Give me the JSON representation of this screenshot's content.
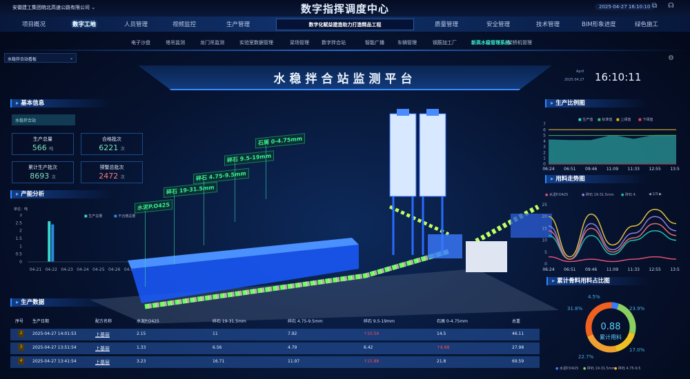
{
  "header": {
    "company": "安徽建工集团皖北高速公路有限公司",
    "title": "数字指挥调度中心",
    "datetime": "2025-04-27 16:10:10",
    "subtitle": "数字化赋益建造助力打造精品工程"
  },
  "nav": {
    "left": [
      "项目概况",
      "数字工地",
      "人员管理",
      "视频监控",
      "生产管理"
    ],
    "right": [
      "质量管理",
      "安全管理",
      "技术管理",
      "BIM形象进度",
      "绿色施工"
    ],
    "active": "数字工地"
  },
  "subnav": {
    "items": [
      "电子沙盘",
      "塔吊监测",
      "龙门吊监测",
      "实验室数据管理",
      "梁场管理",
      "数字拌合站",
      "智能广播",
      "车辆管理",
      "钢筋加工厂",
      "新高水稳管理系统",
      "架桥机管理"
    ],
    "active": "新高水稳管理系统"
  },
  "dropdown": {
    "value": "水稳拌合站看板"
  },
  "banner": {
    "title": "水稳拌合站监测平台",
    "month": "April",
    "date": "2025.04.27",
    "time": "16:10:11"
  },
  "basic": {
    "title": "基本信息",
    "station": "水稳拌合站",
    "cards": [
      {
        "label": "生产总量",
        "value": "566",
        "unit": "吨"
      },
      {
        "label": "合格批次",
        "value": "6221",
        "unit": "次"
      },
      {
        "label": "累计生产批次",
        "value": "8693",
        "unit": "次"
      },
      {
        "label": "预警总批次",
        "value": "2472",
        "unit": "次"
      }
    ]
  },
  "capacity": {
    "title": "产能分析",
    "unit": "单位：吨",
    "legend": [
      "生产总量",
      "不合格总量"
    ],
    "chart_data": {
      "type": "bar",
      "categories": [
        "04-21",
        "04-22",
        "04-23",
        "04-24",
        "04-25",
        "04-26",
        "04-27"
      ],
      "series": [
        {
          "name": "生产总量",
          "values": [
            0,
            2.6,
            0,
            0,
            0,
            0,
            0
          ]
        },
        {
          "name": "不合格总量",
          "values": [
            0,
            2.4,
            0,
            0,
            0,
            0,
            0
          ]
        }
      ],
      "ylim": [
        0,
        3
      ],
      "yticks": [
        "0",
        "0.5",
        "1",
        "1.5",
        "2",
        "2.5",
        "3"
      ]
    }
  },
  "scene": {
    "tags": [
      "水泥P.O425",
      "碎石 19-31.5mm",
      "碎石 4.75-9.5mm",
      "碎石 9.5-19mm",
      "石屑 0-4.75mm"
    ]
  },
  "ratio": {
    "title": "生产比例图",
    "legend": [
      "生产值",
      "标准值",
      "上阀值",
      "下阀值"
    ],
    "colors": [
      "#3ad6c8",
      "#3ac46a",
      "#e8b020",
      "#f0405a"
    ],
    "chart_data": {
      "type": "area",
      "x": [
        "06:24",
        "06:51",
        "09:46",
        "11:09",
        "11:33",
        "12:55",
        "13:51"
      ],
      "ylim": [
        0,
        7
      ],
      "yticks": [
        "0",
        "1",
        "2",
        "3",
        "4",
        "5",
        "6",
        "7"
      ],
      "values": [
        4.3,
        4.2,
        4.2,
        5.1,
        4.4,
        5.1,
        5.1
      ],
      "upper": 6,
      "standard": 5,
      "lower": 0
    }
  },
  "trend": {
    "title": "用料走势图",
    "legend": [
      "水泥P.O425",
      "碎石 19-31.5mm",
      "碎石 4."
    ],
    "pager": "1/3",
    "chart_data": {
      "type": "line",
      "x": [
        "06:24",
        "06:51",
        "09:46",
        "11:09",
        "11:33",
        "12:55",
        "13:51"
      ],
      "ylim": [
        0,
        25
      ],
      "yticks": [
        "0",
        "5",
        "10",
        "15",
        "20",
        "25"
      ],
      "series": [
        {
          "name": "水泥P.O425",
          "color": "#e05070",
          "values": [
            3,
            1,
            2,
            1,
            2,
            3,
            2
          ]
        },
        {
          "name": "碎石 19-31.5mm",
          "color": "#9080e0",
          "values": [
            16,
            2,
            17,
            6,
            13,
            20,
            14
          ]
        },
        {
          "name": "碎石 4.",
          "color": "#20c0b0",
          "values": [
            12,
            2,
            12,
            4,
            10,
            14,
            10
          ]
        },
        {
          "color": "#e0c040",
          "values": [
            20,
            3,
            21,
            8,
            16,
            23,
            17
          ]
        },
        {
          "color": "#e07070",
          "values": [
            14,
            2,
            15,
            5,
            11,
            17,
            12
          ]
        }
      ]
    }
  },
  "share": {
    "title": "累计骨料用料占比图",
    "center_value": "0.88",
    "center_label": "累计用料",
    "legend": [
      "水泥P.O425",
      "碎石 19-31.5mm",
      "碎石 4.75-9.5"
    ],
    "chart_data": {
      "type": "pie",
      "labels": [
        "水泥P.O425",
        "碎石 19-31.5mm",
        "碎石 4.75-9.5mm",
        "碎石 9.5-19mm",
        "石屑 0-4.75mm"
      ],
      "values": [
        4.5,
        23.9,
        17.0,
        22.7,
        31.8
      ],
      "display": [
        "4.5%",
        "23.9%",
        "17.0%",
        "22.7%",
        "31.8%"
      ],
      "colors": [
        "#3a7aff",
        "#8ad060",
        "#f0c020",
        "#f0a030",
        "#f06020"
      ]
    }
  },
  "production": {
    "title": "生产数据",
    "columns": [
      "序号",
      "生产日期",
      "配方名称",
      "水泥P.O425",
      "碎石 19-31.5mm",
      "碎石 4.75-9.5mm",
      "碎石 9.5-19mm",
      "石屑 0-4.75mm",
      "总重"
    ],
    "rows": [
      [
        "2",
        "2025-04-27 14:01:53",
        "上基层",
        "2.15",
        "11",
        "7.92",
        "↑10.54",
        "14.5",
        "46.11"
      ],
      [
        "3",
        "2025-04-27 13:51:54",
        "上基层",
        "1.33",
        "6.56",
        "4.79",
        "6.42",
        "↑8.88",
        "27.98"
      ],
      [
        "4",
        "2025-04-27 13:41:54",
        "上基层",
        "3.23",
        "16.71",
        "11.97",
        "↑15.88",
        "21.8",
        "69.59"
      ]
    ]
  }
}
